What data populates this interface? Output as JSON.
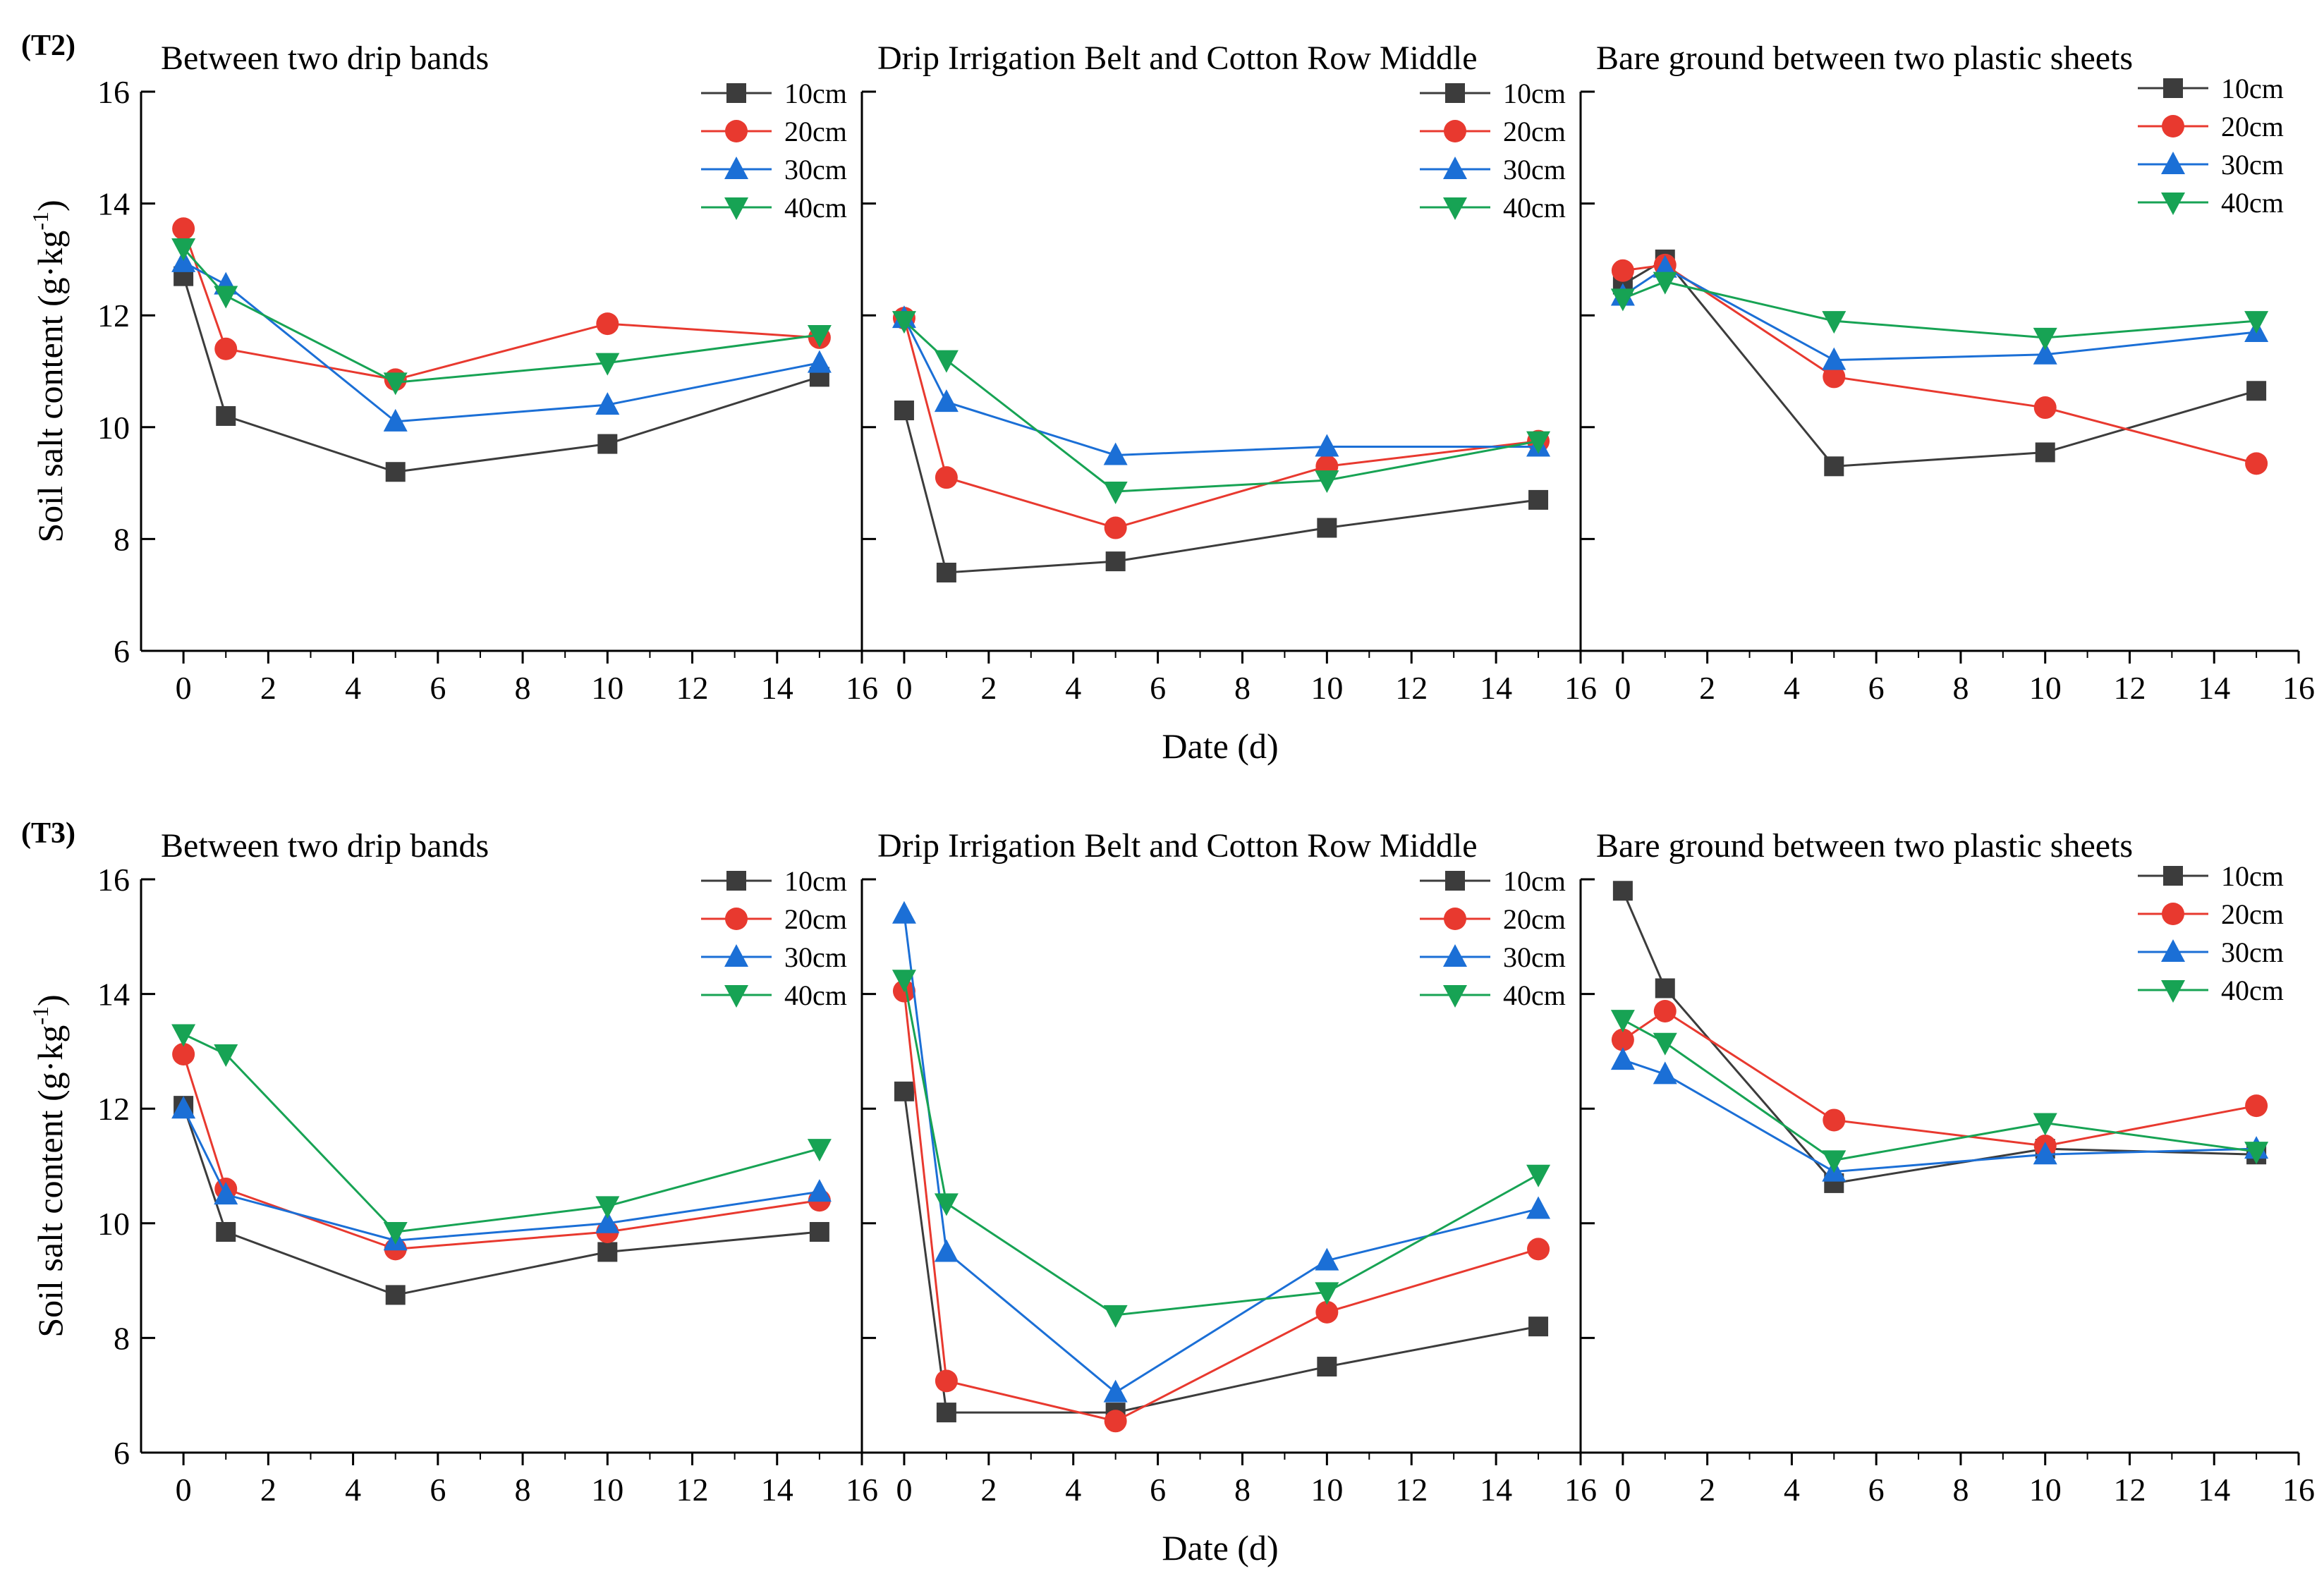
{
  "colors": {
    "10cm": "#3c3c3c",
    "20cm": "#e8392f",
    "30cm": "#1b6fd6",
    "40cm": "#17a354"
  },
  "markers": {
    "10cm": "square",
    "20cm": "circle",
    "30cm": "triangle-up",
    "40cm": "triangle-down"
  },
  "chart_data": [
    {
      "type": "line",
      "row_label": "(T2)",
      "title": "Between two drip bands",
      "ylabel": "Soil salt content (g·kg",
      "ylabel_sup": "-1",
      "ylabel_close": ")",
      "xlabel": "Date (d)",
      "xlim": [
        -1,
        16
      ],
      "ylim": [
        6,
        16
      ],
      "xticks": [
        "0",
        "2",
        "4",
        "6",
        "8",
        "10",
        "12",
        "14",
        "16"
      ],
      "yticks": [
        "6",
        "8",
        "10",
        "12",
        "14",
        "16"
      ],
      "legend": [
        "10cm",
        "20cm",
        "30cm",
        "40cm"
      ],
      "x": [
        0,
        1,
        5,
        10,
        15
      ],
      "series": [
        {
          "name": "10cm",
          "values": [
            12.7,
            10.2,
            9.2,
            9.7,
            10.9
          ]
        },
        {
          "name": "20cm",
          "values": [
            13.55,
            11.4,
            10.85,
            11.85,
            11.6
          ]
        },
        {
          "name": "30cm",
          "values": [
            12.95,
            12.55,
            10.1,
            10.4,
            11.15
          ]
        },
        {
          "name": "40cm",
          "values": [
            13.2,
            12.35,
            10.8,
            11.15,
            11.65
          ]
        }
      ]
    },
    {
      "type": "line",
      "row_label": "",
      "title": "Drip Irrigation Belt and Cotton Row Middle",
      "xlabel": "",
      "xlim": [
        -1,
        16
      ],
      "ylim": [
        6,
        16
      ],
      "xticks": [
        "0",
        "2",
        "4",
        "6",
        "8",
        "10",
        "12",
        "14",
        "16"
      ],
      "legend": [
        "10cm",
        "20cm",
        "30cm",
        "40cm"
      ],
      "x": [
        0,
        1,
        5,
        10,
        15
      ],
      "series": [
        {
          "name": "10cm",
          "values": [
            10.3,
            7.4,
            7.6,
            8.2,
            8.7
          ]
        },
        {
          "name": "20cm",
          "values": [
            11.95,
            9.1,
            8.2,
            9.3,
            9.75
          ]
        },
        {
          "name": "30cm",
          "values": [
            11.95,
            10.45,
            9.5,
            9.65,
            9.65
          ]
        },
        {
          "name": "40cm",
          "values": [
            11.9,
            11.2,
            8.85,
            9.05,
            9.75
          ]
        }
      ]
    },
    {
      "type": "line",
      "row_label": "",
      "title": "Bare ground between two plastic sheets",
      "xlabel": "",
      "xlim": [
        -1,
        16
      ],
      "ylim": [
        6,
        16
      ],
      "xticks": [
        "0",
        "2",
        "4",
        "6",
        "8",
        "10",
        "12",
        "14",
        "16"
      ],
      "legend": [
        "10cm",
        "20cm",
        "30cm",
        "40cm"
      ],
      "x": [
        0,
        1,
        5,
        10,
        15
      ],
      "series": [
        {
          "name": "10cm",
          "values": [
            12.55,
            13.0,
            9.3,
            9.55,
            10.65
          ]
        },
        {
          "name": "20cm",
          "values": [
            12.8,
            12.9,
            10.9,
            10.35,
            9.35
          ]
        },
        {
          "name": "30cm",
          "values": [
            12.35,
            12.85,
            11.2,
            11.3,
            11.7
          ]
        },
        {
          "name": "40cm",
          "values": [
            12.3,
            12.6,
            11.9,
            11.6,
            11.9
          ]
        }
      ]
    },
    {
      "type": "line",
      "row_label": "(T3)",
      "title": "Between two drip bands",
      "ylabel": "Soil salt content (g·kg",
      "ylabel_sup": "-1",
      "ylabel_close": ")",
      "xlabel": "Date (d)",
      "xlim": [
        -1,
        16
      ],
      "ylim": [
        6,
        16
      ],
      "xticks": [
        "0",
        "2",
        "4",
        "6",
        "8",
        "10",
        "12",
        "14",
        "16"
      ],
      "yticks": [
        "6",
        "8",
        "10",
        "12",
        "14",
        "16"
      ],
      "legend": [
        "10cm",
        "20cm",
        "30cm",
        "40cm"
      ],
      "x": [
        0,
        1,
        5,
        10,
        15
      ],
      "series": [
        {
          "name": "10cm",
          "values": [
            12.05,
            9.85,
            8.75,
            9.5,
            9.85
          ]
        },
        {
          "name": "20cm",
          "values": [
            12.95,
            10.6,
            9.55,
            9.85,
            10.4
          ]
        },
        {
          "name": "30cm",
          "values": [
            12.0,
            10.5,
            9.7,
            10.0,
            10.55
          ]
        },
        {
          "name": "40cm",
          "values": [
            13.3,
            12.95,
            9.85,
            10.3,
            11.3
          ]
        }
      ]
    },
    {
      "type": "line",
      "row_label": "",
      "title": "Drip Irrigation Belt and Cotton Row Middle",
      "xlabel": "",
      "xlim": [
        -1,
        16
      ],
      "ylim": [
        6,
        16
      ],
      "xticks": [
        "0",
        "2",
        "4",
        "6",
        "8",
        "10",
        "12",
        "14",
        "16"
      ],
      "legend": [
        "10cm",
        "20cm",
        "30cm",
        "40cm"
      ],
      "x": [
        0,
        1,
        5,
        10,
        15
      ],
      "series": [
        {
          "name": "10cm",
          "values": [
            12.3,
            6.7,
            6.7,
            7.5,
            8.2
          ]
        },
        {
          "name": "20cm",
          "values": [
            14.05,
            7.25,
            6.55,
            8.45,
            9.55
          ]
        },
        {
          "name": "30cm",
          "values": [
            15.4,
            9.5,
            7.05,
            9.35,
            10.25
          ]
        },
        {
          "name": "40cm",
          "values": [
            14.25,
            10.35,
            8.4,
            8.8,
            10.85
          ]
        }
      ]
    },
    {
      "type": "line",
      "row_label": "",
      "title": "Bare ground between two plastic sheets",
      "xlabel": "",
      "xlim": [
        -1,
        16
      ],
      "ylim": [
        6,
        16
      ],
      "xticks": [
        "0",
        "2",
        "4",
        "6",
        "8",
        "10",
        "12",
        "14",
        "16"
      ],
      "legend": [
        "10cm",
        "20cm",
        "30cm",
        "40cm"
      ],
      "x": [
        0,
        1,
        5,
        10,
        15
      ],
      "series": [
        {
          "name": "10cm",
          "values": [
            15.8,
            14.1,
            10.7,
            11.3,
            11.2
          ]
        },
        {
          "name": "20cm",
          "values": [
            13.2,
            13.7,
            11.8,
            11.35,
            12.05
          ]
        },
        {
          "name": "30cm",
          "values": [
            12.85,
            12.6,
            10.9,
            11.2,
            11.3
          ]
        },
        {
          "name": "40cm",
          "values": [
            13.55,
            13.15,
            11.1,
            11.75,
            11.25
          ]
        }
      ]
    }
  ]
}
